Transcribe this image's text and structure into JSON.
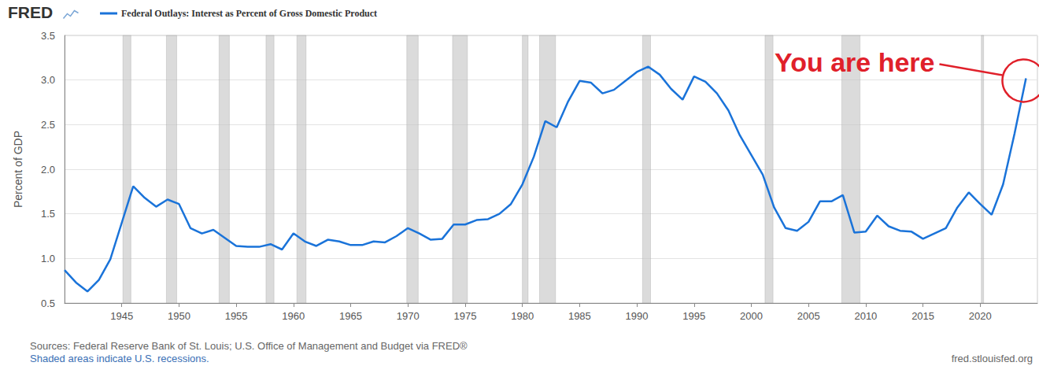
{
  "chart_data": {
    "type": "line",
    "logo": "FRED",
    "y_label": "Percent of GDP",
    "x": [
      1940,
      1941,
      1942,
      1943,
      1944,
      1945,
      1946,
      1947,
      1948,
      1949,
      1950,
      1951,
      1952,
      1953,
      1954,
      1955,
      1956,
      1957,
      1958,
      1959,
      1960,
      1961,
      1962,
      1963,
      1964,
      1965,
      1966,
      1967,
      1968,
      1969,
      1970,
      1971,
      1972,
      1973,
      1974,
      1975,
      1976,
      1977,
      1978,
      1979,
      1980,
      1981,
      1982,
      1983,
      1984,
      1985,
      1986,
      1987,
      1988,
      1989,
      1990,
      1991,
      1992,
      1993,
      1994,
      1995,
      1996,
      1997,
      1998,
      1999,
      2000,
      2001,
      2002,
      2003,
      2004,
      2005,
      2006,
      2007,
      2008,
      2009,
      2010,
      2011,
      2012,
      2013,
      2014,
      2015,
      2016,
      2017,
      2018,
      2019,
      2020,
      2021,
      2022,
      2023,
      2024
    ],
    "series": [
      {
        "name": "Federal Outlays: Interest as Percent of Gross Domestic Product",
        "color": "#1a73d9",
        "values": [
          0.87,
          0.73,
          0.63,
          0.76,
          0.99,
          1.4,
          1.81,
          1.68,
          1.58,
          1.66,
          1.61,
          1.34,
          1.28,
          1.32,
          1.23,
          1.14,
          1.13,
          1.13,
          1.16,
          1.1,
          1.28,
          1.19,
          1.14,
          1.21,
          1.19,
          1.15,
          1.15,
          1.19,
          1.18,
          1.25,
          1.34,
          1.28,
          1.21,
          1.22,
          1.38,
          1.38,
          1.43,
          1.44,
          1.5,
          1.61,
          1.83,
          2.14,
          2.54,
          2.47,
          2.76,
          2.99,
          2.97,
          2.85,
          2.89,
          2.99,
          3.09,
          3.15,
          3.06,
          2.9,
          2.78,
          3.04,
          2.98,
          2.85,
          2.66,
          2.38,
          2.16,
          1.94,
          1.57,
          1.34,
          1.31,
          1.41,
          1.64,
          1.64,
          1.71,
          1.29,
          1.3,
          1.48,
          1.36,
          1.31,
          1.3,
          1.22,
          1.28,
          1.34,
          1.57,
          1.74,
          1.61,
          1.49,
          1.83,
          2.4,
          3.02
        ]
      }
    ],
    "xlim": [
      1940,
      2025
    ],
    "xticks": [
      1945,
      1950,
      1955,
      1960,
      1965,
      1970,
      1975,
      1980,
      1985,
      1990,
      1995,
      2000,
      2005,
      2010,
      2015,
      2020
    ],
    "ylim": [
      0.5,
      3.5
    ],
    "yticks": [
      0.5,
      {
        "value": 1,
        "label": "1.0"
      },
      1.5,
      {
        "value": 2,
        "label": "2.0"
      },
      2.5,
      {
        "value": 3,
        "label": "3.0"
      },
      3.5
    ],
    "grid": true,
    "legend": "top-left",
    "recessions": [
      [
        1945.1,
        1945.8
      ],
      [
        1948.9,
        1949.8
      ],
      [
        1953.5,
        1954.4
      ],
      [
        1957.6,
        1958.3
      ],
      [
        1960.3,
        1961.1
      ],
      [
        1969.9,
        1970.9
      ],
      [
        1973.9,
        1975.2
      ],
      [
        1980.0,
        1980.5
      ],
      [
        1981.5,
        1982.9
      ],
      [
        1990.5,
        1991.2
      ],
      [
        2001.2,
        2001.9
      ],
      [
        2007.9,
        2009.5
      ],
      [
        2020.1,
        2020.3
      ]
    ],
    "annotations": [
      {
        "text": "You are here",
        "color": "#e0202a"
      }
    ],
    "source": "Sources: Federal Reserve Bank of St. Louis; U.S. Office of Management and Budget via FRED®",
    "note": "Shaded areas indicate U.S. recessions.",
    "url": "fred.stlouisfed.org"
  }
}
